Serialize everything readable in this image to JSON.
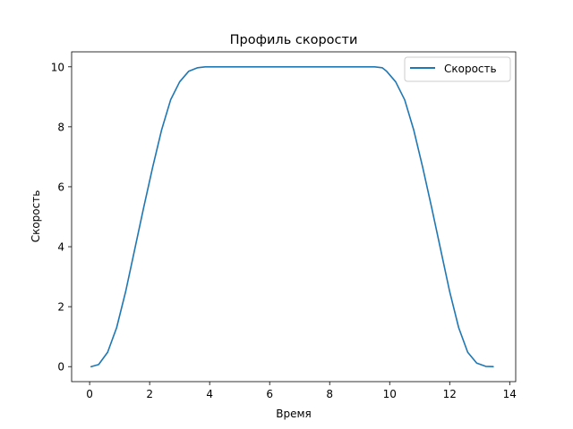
{
  "chart_data": {
    "type": "line",
    "title": "Профиль скорости",
    "xlabel": "Время",
    "ylabel": "Скорость",
    "xlim": [
      -0.6,
      14.2
    ],
    "ylim": [
      -0.5,
      10.5
    ],
    "x_ticks": [
      0,
      2,
      4,
      6,
      8,
      10,
      12,
      14
    ],
    "y_ticks": [
      0,
      2,
      4,
      6,
      8,
      10
    ],
    "grid": false,
    "legend_position": "top-right",
    "series": [
      {
        "name": "Скорость",
        "color": "#1f77b4",
        "x": [
          0.05,
          0.3,
          0.6,
          0.9,
          1.2,
          1.5,
          1.8,
          2.1,
          2.4,
          2.7,
          3.0,
          3.3,
          3.6,
          3.85,
          4.0,
          5.0,
          6.0,
          7.0,
          8.0,
          9.0,
          9.5,
          9.75,
          9.9,
          10.2,
          10.5,
          10.8,
          11.1,
          11.4,
          11.7,
          12.0,
          12.3,
          12.6,
          12.9,
          13.2,
          13.45
        ],
        "y": [
          0.0,
          0.07,
          0.48,
          1.3,
          2.5,
          3.9,
          5.3,
          6.65,
          7.9,
          8.9,
          9.5,
          9.85,
          9.97,
          10.0,
          10.0,
          10.0,
          10.0,
          10.0,
          10.0,
          10.0,
          10.0,
          9.97,
          9.85,
          9.5,
          8.9,
          7.9,
          6.65,
          5.3,
          3.9,
          2.5,
          1.3,
          0.48,
          0.12,
          0.01,
          0.0
        ]
      }
    ]
  }
}
